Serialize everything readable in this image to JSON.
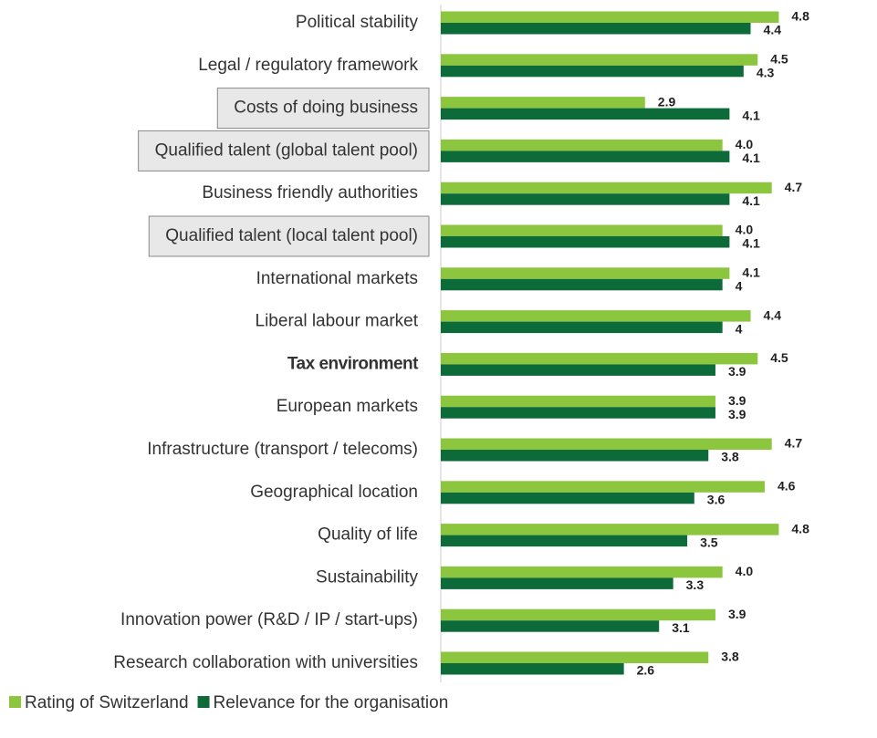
{
  "chart_data": {
    "type": "hbar",
    "categories": [
      "Political stability",
      "Legal / regulatory framework",
      "Costs of doing business",
      "Qualified talent (global talent pool)",
      "Business friendly authorities",
      "Qualified talent (local talent pool)",
      "International markets",
      "Liberal labour market",
      "Tax environment",
      "European markets",
      "Infrastructure (transport / telecoms)",
      "Geographical location",
      "Quality of life",
      "Sustainability",
      "Innovation power (R&D / IP / start-ups)",
      "Research collaboration with universities"
    ],
    "series": [
      {
        "name": "Rating of Switzerland",
        "color": "#8cc63f",
        "values": [
          4.8,
          4.5,
          2.9,
          4.0,
          4.7,
          4.0,
          4.1,
          4.4,
          4.5,
          3.9,
          4.7,
          4.6,
          4.8,
          4.0,
          3.9,
          3.8
        ],
        "value_labels": [
          "4.8",
          "4.5",
          "2.9",
          "4.0",
          "4.7",
          "4.0",
          "4.1",
          "4.4",
          "4.5",
          "3.9",
          "4.7",
          "4.6",
          "4.8",
          "4.0",
          "3.9",
          "3.8"
        ]
      },
      {
        "name": "Relevance for the organisation",
        "color": "#0d6b3a",
        "values": [
          4.4,
          4.3,
          4.1,
          4.1,
          4.1,
          4.1,
          4.0,
          4.0,
          3.9,
          3.9,
          3.8,
          3.6,
          3.5,
          3.3,
          3.1,
          2.6
        ]
      }
    ],
    "xlim": [
      0,
      6
    ],
    "xticks": [],
    "boxed": [
      2,
      3,
      5
    ],
    "bold": [
      8
    ],
    "legend": "bottom-left"
  }
}
